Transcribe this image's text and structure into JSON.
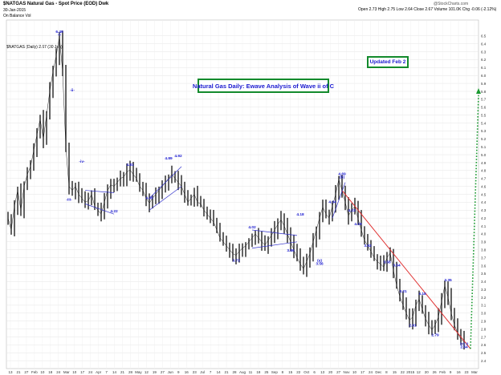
{
  "header": {
    "symbol_title": "$NATGAS Natural Gas - Spot Price (EOD) Dwk",
    "date": "30-Jan-2015",
    "indicator": "On Balance Vol",
    "source": "@StockCharts.com",
    "ohlc": "Open 2.73  High 2.75  Low 2.64  Close 2.67  Volume 101.0K  Chg -0.06 (-2.12%)",
    "legend": "$NATGAS (Daily) 2.67 (30 Jan)"
  },
  "title_box": "Natural Gas Daily: Ewave Analysis of Wave ii of C",
  "update_box": "Updated Feb 2",
  "chart_data": {
    "type": "line",
    "ylim": [
      2.3,
      6.7
    ],
    "yticks": [
      2.4,
      2.5,
      2.6,
      2.7,
      2.8,
      2.9,
      3.0,
      3.1,
      3.2,
      3.3,
      3.4,
      3.5,
      3.6,
      3.7,
      3.8,
      3.9,
      4.0,
      4.1,
      4.2,
      4.3,
      4.4,
      4.5,
      4.6,
      4.7,
      4.8,
      4.9,
      5.0,
      5.1,
      5.2,
      5.3,
      5.4,
      5.5,
      5.6,
      5.7,
      5.8,
      5.9,
      6.0,
      6.1,
      6.2,
      6.3,
      6.4,
      6.5
    ],
    "xticks": [
      "13",
      "21",
      "27",
      "Feb",
      "10",
      "18",
      "24",
      "Mar",
      "10",
      "17",
      "24",
      "Apr",
      "7",
      "14",
      "21",
      "28",
      "May",
      "12",
      "19",
      "27",
      "Jun",
      "9",
      "16",
      "23",
      "Jul",
      "7",
      "14",
      "21",
      "28",
      "Aug",
      "11",
      "18",
      "25",
      "Sep",
      "8",
      "15",
      "22",
      "Oct",
      "6",
      "13",
      "20",
      "27",
      "Nov",
      "10",
      "17",
      "24",
      "Dec",
      "8",
      "15",
      "22",
      "2015",
      "12",
      "20",
      "26",
      "Feb",
      "9",
      "16",
      "23",
      "Mar"
    ],
    "series": [
      {
        "values": [
          4.2,
          4.05,
          4.35,
          4.55,
          4.3,
          4.6,
          4.75,
          4.85,
          5.05,
          5.25,
          5.45,
          5.2,
          5.5,
          5.8,
          6.05,
          6.25,
          6.49,
          6.05,
          5.1,
          4.6,
          4.55,
          4.6,
          4.5,
          4.45,
          4.4,
          4.42,
          4.5,
          4.35,
          4.3,
          4.25,
          4.4,
          4.55,
          4.62,
          4.6,
          4.65,
          4.7,
          4.72,
          4.78,
          4.81,
          4.75,
          4.7,
          4.6,
          4.55,
          4.45,
          4.39,
          4.45,
          4.5,
          4.55,
          4.6,
          4.65,
          4.7,
          4.75,
          4.7,
          4.65,
          4.6,
          4.5,
          4.4,
          4.45,
          4.5,
          4.4,
          4.38,
          4.3,
          4.25,
          4.2,
          4.15,
          4.05,
          3.95,
          3.9,
          3.85,
          3.8,
          3.75,
          3.73,
          3.78,
          3.82,
          3.85,
          3.9,
          3.95,
          4.0,
          3.95,
          3.9,
          3.86,
          3.92,
          3.98,
          4.05,
          4.12,
          4.18,
          4.1,
          4.0,
          3.9,
          3.8,
          3.7,
          3.62,
          3.56,
          3.65,
          3.75,
          3.9,
          4.05,
          4.2,
          4.34,
          4.25,
          4.2,
          4.35,
          4.5,
          4.69,
          4.55,
          4.4,
          4.23,
          4.3,
          4.35,
          4.19,
          4.05,
          3.92,
          3.85,
          3.78,
          3.7,
          3.65,
          3.62,
          3.58,
          3.7,
          3.76,
          3.54,
          3.35,
          3.21,
          3.1,
          3.0,
          2.91,
          2.95,
          3.1,
          3.18,
          3.05,
          2.93,
          2.85,
          2.79,
          2.85,
          2.95,
          3.15,
          3.35,
          3.2,
          3.0,
          2.85,
          2.75,
          2.67,
          2.64
        ]
      }
    ],
    "annotations": [
      {
        "text": "6.49",
        "x": 16,
        "y": 6.49
      },
      {
        "text": "-i-",
        "x": 16,
        "y": 6.45
      },
      {
        "text": "-ii-",
        "x": 20,
        "y": 5.75
      },
      {
        "text": "-iii-",
        "x": 19,
        "y": 4.5
      },
      {
        "text": "-iv-",
        "x": 23,
        "y": 4.85
      },
      {
        "text": "4.22",
        "x": 33,
        "y": 4.22
      },
      {
        "text": "4.81",
        "x": 38,
        "y": 4.81
      },
      {
        "text": "4.39",
        "x": 44,
        "y": 4.39
      },
      {
        "text": "4.89",
        "x": 50,
        "y": 4.89
      },
      {
        "text": "4.92",
        "x": 53,
        "y": 4.92
      },
      {
        "text": "3.73",
        "x": 71,
        "y": 3.73
      },
      {
        "text": "4.02",
        "x": 76,
        "y": 4.02
      },
      {
        "text": "3.86",
        "x": 88,
        "y": 3.86
      },
      {
        "text": "4.18",
        "x": 91,
        "y": 4.18
      },
      {
        "text": "3.56",
        "x": 97,
        "y": 3.56
      },
      {
        "text": "(a)",
        "x": 97,
        "y": 3.6
      },
      {
        "text": "4.34",
        "x": 101,
        "y": 4.34
      },
      {
        "text": "4.69",
        "x": 104,
        "y": 4.69
      },
      {
        "text": "(b)",
        "x": 104,
        "y": 4.65
      },
      {
        "text": "4.23",
        "x": 107,
        "y": 4.23
      },
      {
        "text": "4.19",
        "x": 109,
        "y": 4.19
      },
      {
        "text": "3.92",
        "x": 112,
        "y": 3.92
      },
      {
        "text": "3.54",
        "x": 121,
        "y": 3.54
      },
      {
        "text": "3.58",
        "x": 118,
        "y": 3.58
      },
      {
        "text": "3.21",
        "x": 123,
        "y": 3.21
      },
      {
        "text": "3.18",
        "x": 129,
        "y": 3.18
      },
      {
        "text": "2.91",
        "x": 126,
        "y": 2.91
      },
      {
        "text": "3.35",
        "x": 137,
        "y": 3.35
      },
      {
        "text": "2.79",
        "x": 133,
        "y": 2.79
      },
      {
        "text": "2.64",
        "x": 142,
        "y": 2.64
      },
      {
        "text": "(c) ii",
        "x": 142,
        "y": 2.55
      }
    ],
    "grid": true
  },
  "colors": {
    "price": "#222222",
    "labels": "#1a1ad0",
    "trend_red": "#e03030",
    "projection_green": "#1a9a30",
    "channel_blue": "#3333cc"
  }
}
